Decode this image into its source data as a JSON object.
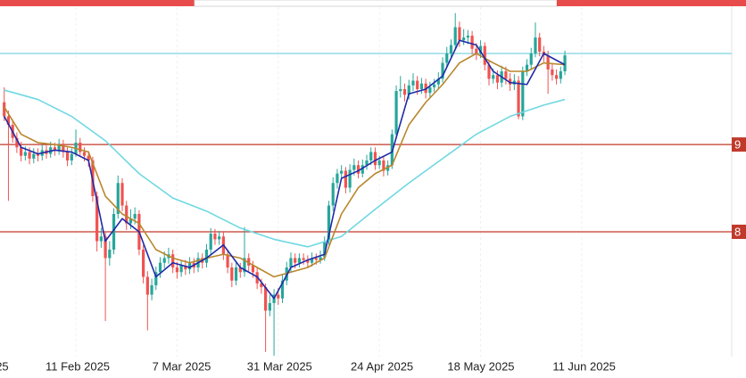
{
  "chart_data": {
    "type": "candlestick",
    "up_color": "#26a69a",
    "down_color": "#ef5350",
    "xlim": [
      "2025-01-24",
      "2025-07-17"
    ],
    "ylim": [
      75.7,
      113.7
    ],
    "xticks": [
      {
        "value": "2025-01-18",
        "label": "25"
      },
      {
        "value": "2025-02-11",
        "label": "11 Feb 2025"
      },
      {
        "value": "2025-03-07",
        "label": "7 Mar 2025"
      },
      {
        "value": "2025-03-31",
        "label": "31 Mar 2025"
      },
      {
        "value": "2025-04-24",
        "label": "24 Apr 2025"
      },
      {
        "value": "2025-05-18",
        "label": "18 May 2025"
      },
      {
        "value": "2025-06-11",
        "label": "11 Jun 2025"
      }
    ],
    "levels": [
      {
        "value": 108.0,
        "color": "#7fd3df"
      },
      {
        "value": 98.3,
        "color": "#c0392b",
        "label": "9"
      },
      {
        "value": 89.0,
        "color": "#c0392b",
        "label": "8"
      }
    ],
    "x": [
      "2025-01-25",
      "2025-01-26",
      "2025-01-27",
      "2025-01-28",
      "2025-01-29",
      "2025-01-30",
      "2025-01-31",
      "2025-02-01",
      "2025-02-02",
      "2025-02-03",
      "2025-02-04",
      "2025-02-05",
      "2025-02-06",
      "2025-02-07",
      "2025-02-08",
      "2025-02-09",
      "2025-02-10",
      "2025-02-11",
      "2025-02-12",
      "2025-02-13",
      "2025-02-14",
      "2025-02-15",
      "2025-02-16",
      "2025-02-17",
      "2025-02-18",
      "2025-02-19",
      "2025-02-20",
      "2025-02-21",
      "2025-02-22",
      "2025-02-23",
      "2025-02-24",
      "2025-02-25",
      "2025-02-26",
      "2025-02-27",
      "2025-02-28",
      "2025-03-01",
      "2025-03-02",
      "2025-03-03",
      "2025-03-04",
      "2025-03-05",
      "2025-03-06",
      "2025-03-07",
      "2025-03-08",
      "2025-03-09",
      "2025-03-10",
      "2025-03-11",
      "2025-03-12",
      "2025-03-13",
      "2025-03-14",
      "2025-03-15",
      "2025-03-16",
      "2025-03-17",
      "2025-03-18",
      "2025-03-19",
      "2025-03-20",
      "2025-03-21",
      "2025-03-22",
      "2025-03-23",
      "2025-03-24",
      "2025-03-25",
      "2025-03-26",
      "2025-03-27",
      "2025-03-28",
      "2025-03-29",
      "2025-03-30",
      "2025-03-31",
      "2025-04-01",
      "2025-04-02",
      "2025-04-03",
      "2025-04-04",
      "2025-04-05",
      "2025-04-06",
      "2025-04-07",
      "2025-04-08",
      "2025-04-09",
      "2025-04-10",
      "2025-04-11",
      "2025-04-12",
      "2025-04-13",
      "2025-04-14",
      "2025-04-15",
      "2025-04-16",
      "2025-04-17",
      "2025-04-18",
      "2025-04-19",
      "2025-04-20",
      "2025-04-21",
      "2025-04-22",
      "2025-04-23",
      "2025-04-24",
      "2025-04-25",
      "2025-04-26",
      "2025-04-27",
      "2025-04-28",
      "2025-04-29",
      "2025-04-30",
      "2025-05-01",
      "2025-05-02",
      "2025-05-03",
      "2025-05-04",
      "2025-05-05",
      "2025-05-06",
      "2025-05-07",
      "2025-05-08",
      "2025-05-09",
      "2025-05-10",
      "2025-05-11",
      "2025-05-12",
      "2025-05-13",
      "2025-05-14",
      "2025-05-15",
      "2025-05-16",
      "2025-05-17",
      "2025-05-18",
      "2025-05-19",
      "2025-05-20",
      "2025-05-21",
      "2025-05-22",
      "2025-05-23",
      "2025-05-24",
      "2025-05-25",
      "2025-05-26",
      "2025-05-27",
      "2025-05-28",
      "2025-05-29",
      "2025-05-30",
      "2025-05-31",
      "2025-06-01",
      "2025-06-02",
      "2025-06-03",
      "2025-06-04",
      "2025-06-05",
      "2025-06-06",
      "2025-06-07"
    ],
    "values": [
      [
        102.8,
        104.4,
        100.8,
        101.3
      ],
      [
        101.3,
        101.9,
        92.3,
        100.4
      ],
      [
        100.4,
        100.9,
        98.5,
        99.0
      ],
      [
        99.0,
        99.6,
        97.4,
        98.0
      ],
      [
        98.0,
        98.6,
        96.5,
        97.1
      ],
      [
        97.1,
        98.1,
        96.6,
        97.5
      ],
      [
        97.5,
        98.0,
        96.2,
        96.8
      ],
      [
        96.8,
        97.9,
        96.3,
        97.3
      ],
      [
        97.3,
        97.9,
        96.5,
        97.1
      ],
      [
        97.1,
        98.3,
        96.6,
        97.7
      ],
      [
        97.7,
        98.2,
        96.8,
        97.3
      ],
      [
        97.3,
        98.6,
        96.9,
        98.0
      ],
      [
        98.0,
        98.5,
        97.1,
        97.7
      ],
      [
        97.7,
        98.9,
        97.2,
        98.3
      ],
      [
        98.3,
        98.8,
        96.9,
        97.5
      ],
      [
        97.5,
        98.0,
        96.0,
        96.6
      ],
      [
        96.6,
        97.9,
        96.1,
        97.3
      ],
      [
        97.3,
        99.9,
        97.0,
        98.5
      ],
      [
        98.5,
        99.0,
        97.0,
        97.5
      ],
      [
        97.5,
        98.0,
        96.5,
        97.1
      ],
      [
        97.1,
        97.6,
        95.9,
        96.6
      ],
      [
        96.6,
        97.0,
        92.2,
        92.8
      ],
      [
        92.8,
        93.3,
        86.9,
        88.0
      ],
      [
        88.0,
        89.4,
        87.3,
        88.5
      ],
      [
        88.5,
        89.0,
        79.5,
        86.2
      ],
      [
        86.2,
        88.0,
        85.4,
        87.1
      ],
      [
        87.1,
        91.5,
        86.6,
        90.9
      ],
      [
        90.9,
        95.0,
        90.4,
        94.2
      ],
      [
        94.2,
        94.7,
        91.2,
        91.8
      ],
      [
        91.8,
        92.3,
        89.2,
        89.9
      ],
      [
        89.9,
        91.4,
        89.3,
        90.4
      ],
      [
        90.4,
        91.6,
        89.8,
        90.9
      ],
      [
        90.9,
        91.3,
        86.5,
        87.1
      ],
      [
        87.1,
        87.6,
        83.5,
        84.2
      ],
      [
        84.2,
        84.8,
        78.5,
        82.3
      ],
      [
        82.3,
        84.0,
        81.7,
        83.3
      ],
      [
        83.3,
        85.3,
        82.8,
        84.7
      ],
      [
        84.7,
        86.3,
        84.1,
        85.7
      ],
      [
        85.7,
        86.9,
        85.1,
        86.2
      ],
      [
        86.2,
        87.3,
        85.6,
        86.6
      ],
      [
        86.6,
        87.1,
        84.6,
        85.2
      ],
      [
        85.2,
        85.8,
        84.0,
        84.7
      ],
      [
        84.7,
        86.0,
        84.2,
        85.4
      ],
      [
        85.4,
        86.0,
        84.4,
        85.0
      ],
      [
        85.0,
        86.3,
        84.5,
        85.7
      ],
      [
        85.7,
        86.2,
        84.6,
        85.2
      ],
      [
        85.2,
        86.8,
        84.7,
        86.2
      ],
      [
        86.2,
        86.7,
        85.1,
        85.7
      ],
      [
        85.7,
        87.7,
        85.2,
        87.1
      ],
      [
        87.1,
        89.4,
        86.6,
        88.8
      ],
      [
        88.8,
        89.3,
        87.6,
        88.2
      ],
      [
        88.2,
        89.1,
        87.6,
        88.5
      ],
      [
        88.5,
        89.0,
        86.0,
        86.6
      ],
      [
        86.6,
        87.1,
        84.6,
        85.2
      ],
      [
        85.2,
        85.7,
        83.1,
        83.8
      ],
      [
        83.8,
        85.8,
        83.3,
        85.2
      ],
      [
        85.2,
        85.7,
        84.1,
        84.7
      ],
      [
        84.7,
        89.5,
        84.2,
        86.2
      ],
      [
        86.2,
        86.7,
        84.8,
        85.4
      ],
      [
        85.4,
        85.9,
        84.1,
        84.7
      ],
      [
        84.7,
        85.2,
        82.9,
        83.5
      ],
      [
        83.5,
        84.0,
        82.4,
        83.1
      ],
      [
        83.1,
        83.5,
        76.2,
        80.6
      ],
      [
        80.6,
        82.3,
        80.0,
        81.4
      ],
      [
        81.4,
        82.9,
        75.8,
        82.3
      ],
      [
        82.3,
        83.0,
        81.2,
        81.9
      ],
      [
        81.9,
        84.4,
        81.4,
        83.8
      ],
      [
        83.8,
        85.8,
        83.3,
        85.2
      ],
      [
        85.2,
        86.8,
        84.7,
        86.2
      ],
      [
        86.2,
        86.7,
        85.1,
        85.7
      ],
      [
        85.7,
        86.7,
        85.2,
        86.2
      ],
      [
        86.2,
        86.7,
        85.5,
        86.0
      ],
      [
        86.0,
        86.5,
        85.2,
        85.7
      ],
      [
        85.7,
        86.8,
        85.3,
        86.2
      ],
      [
        86.2,
        86.7,
        85.5,
        86.0
      ],
      [
        86.0,
        87.0,
        85.6,
        86.3
      ],
      [
        86.3,
        88.5,
        85.9,
        88.0
      ],
      [
        88.0,
        92.3,
        87.6,
        91.8
      ],
      [
        91.8,
        94.8,
        91.2,
        94.2
      ],
      [
        94.2,
        95.7,
        93.6,
        95.2
      ],
      [
        95.2,
        96.1,
        94.6,
        95.5
      ],
      [
        95.5,
        95.9,
        93.1,
        93.7
      ],
      [
        93.7,
        96.2,
        93.2,
        95.6
      ],
      [
        95.6,
        96.8,
        95.0,
        96.1
      ],
      [
        96.1,
        96.6,
        94.7,
        95.2
      ],
      [
        95.2,
        96.7,
        94.8,
        96.1
      ],
      [
        96.1,
        97.2,
        95.6,
        96.6
      ],
      [
        96.6,
        98.0,
        96.1,
        97.5
      ],
      [
        97.5,
        98.0,
        95.6,
        96.1
      ],
      [
        96.1,
        97.1,
        95.7,
        96.6
      ],
      [
        96.6,
        97.0,
        94.9,
        95.5
      ],
      [
        95.5,
        96.6,
        95.0,
        96.1
      ],
      [
        96.1,
        99.9,
        95.7,
        99.4
      ],
      [
        99.4,
        104.6,
        98.9,
        104.0
      ],
      [
        104.0,
        105.6,
        103.3,
        104.2
      ],
      [
        104.2,
        104.8,
        102.9,
        103.6
      ],
      [
        103.6,
        105.2,
        103.1,
        104.6
      ],
      [
        104.6,
        105.9,
        104.0,
        105.1
      ],
      [
        105.1,
        105.6,
        103.6,
        104.2
      ],
      [
        104.2,
        105.4,
        103.7,
        104.8
      ],
      [
        104.8,
        105.3,
        103.2,
        103.8
      ],
      [
        103.8,
        105.0,
        103.3,
        104.4
      ],
      [
        104.4,
        105.3,
        103.9,
        104.7
      ],
      [
        104.7,
        106.0,
        104.2,
        105.3
      ],
      [
        105.3,
        107.6,
        104.9,
        107.0
      ],
      [
        107.0,
        108.7,
        106.5,
        108.0
      ],
      [
        108.0,
        109.5,
        107.4,
        108.9
      ],
      [
        108.9,
        112.3,
        108.4,
        110.8
      ],
      [
        110.8,
        111.4,
        108.7,
        109.4
      ],
      [
        109.4,
        110.6,
        108.9,
        109.7
      ],
      [
        109.7,
        110.5,
        109.0,
        109.9
      ],
      [
        109.9,
        110.4,
        107.9,
        108.5
      ],
      [
        108.5,
        109.1,
        107.3,
        108.0
      ],
      [
        108.0,
        109.4,
        107.5,
        108.8
      ],
      [
        108.8,
        109.2,
        106.2,
        106.8
      ],
      [
        106.8,
        107.3,
        104.6,
        105.3
      ],
      [
        105.3,
        106.4,
        104.8,
        105.7
      ],
      [
        105.7,
        106.2,
        104.2,
        104.9
      ],
      [
        104.9,
        106.7,
        104.4,
        106.1
      ],
      [
        106.1,
        106.6,
        104.7,
        105.3
      ],
      [
        105.3,
        105.9,
        104.0,
        104.7
      ],
      [
        104.7,
        105.8,
        104.1,
        105.1
      ],
      [
        105.1,
        105.6,
        101.0,
        101.3
      ],
      [
        101.3,
        106.6,
        100.9,
        106.1
      ],
      [
        106.1,
        107.4,
        105.6,
        106.8
      ],
      [
        106.8,
        108.6,
        106.3,
        108.0
      ],
      [
        108.0,
        111.3,
        107.6,
        109.7
      ],
      [
        109.7,
        110.2,
        107.7,
        108.2
      ],
      [
        108.2,
        108.8,
        107.1,
        107.8
      ],
      [
        107.8,
        108.3,
        103.7,
        106.3
      ],
      [
        106.3,
        106.9,
        105.1,
        105.7
      ],
      [
        105.7,
        106.3,
        104.7,
        105.3
      ],
      [
        105.3,
        106.6,
        104.8,
        106.1
      ],
      [
        106.1,
        108.3,
        105.7,
        107.8
      ]
    ],
    "overlays": [
      {
        "color": "#6fd8e2",
        "x": [
          "2025-01-25",
          "2025-02-02",
          "2025-02-10",
          "2025-02-18",
          "2025-02-26",
          "2025-03-06",
          "2025-03-14",
          "2025-03-22",
          "2025-03-30",
          "2025-04-07",
          "2025-04-15",
          "2025-04-23",
          "2025-05-01",
          "2025-05-09",
          "2025-05-17",
          "2025-05-25",
          "2025-06-02",
          "2025-06-07"
        ],
        "values": [
          104.1,
          103.1,
          101.3,
          98.7,
          95.2,
          92.6,
          91.2,
          89.4,
          88.2,
          87.4,
          88.5,
          91.4,
          94.2,
          96.8,
          99.4,
          101.3,
          102.5,
          103.1
        ]
      },
      {
        "color": "#b8862b",
        "x": [
          "2025-01-25",
          "2025-01-29",
          "2025-02-02",
          "2025-02-06",
          "2025-02-10",
          "2025-02-14",
          "2025-02-18",
          "2025-02-22",
          "2025-02-26",
          "2025-03-02",
          "2025-03-06",
          "2025-03-10",
          "2025-03-14",
          "2025-03-18",
          "2025-03-22",
          "2025-03-26",
          "2025-03-30",
          "2025-04-03",
          "2025-04-07",
          "2025-04-11",
          "2025-04-15",
          "2025-04-19",
          "2025-04-23",
          "2025-04-27",
          "2025-05-01",
          "2025-05-05",
          "2025-05-09",
          "2025-05-13",
          "2025-05-17",
          "2025-05-21",
          "2025-05-25",
          "2025-05-29",
          "2025-06-02",
          "2025-06-07"
        ],
        "values": [
          102.3,
          99.4,
          98.5,
          98.3,
          98.0,
          97.5,
          92.8,
          90.9,
          89.9,
          87.1,
          86.2,
          85.7,
          86.2,
          86.6,
          86.2,
          85.2,
          84.2,
          84.7,
          85.2,
          86.2,
          90.9,
          93.7,
          95.2,
          96.1,
          100.4,
          102.8,
          104.7,
          107.0,
          108.0,
          107.0,
          106.1,
          106.1,
          107.0,
          106.8
        ]
      },
      {
        "color": "#1f2aa8",
        "x": [
          "2025-01-25",
          "2025-01-29",
          "2025-02-02",
          "2025-02-06",
          "2025-02-10",
          "2025-02-14",
          "2025-02-18",
          "2025-02-22",
          "2025-02-26",
          "2025-03-02",
          "2025-03-06",
          "2025-03-10",
          "2025-03-14",
          "2025-03-18",
          "2025-03-22",
          "2025-03-26",
          "2025-03-30",
          "2025-04-03",
          "2025-04-07",
          "2025-04-11",
          "2025-04-15",
          "2025-04-19",
          "2025-04-23",
          "2025-04-27",
          "2025-05-01",
          "2025-05-05",
          "2025-05-09",
          "2025-05-13",
          "2025-05-17",
          "2025-05-21",
          "2025-05-25",
          "2025-05-29",
          "2025-06-02",
          "2025-06-07"
        ],
        "values": [
          101.3,
          98.0,
          97.3,
          97.7,
          97.5,
          96.6,
          88.0,
          90.4,
          89.0,
          84.2,
          85.7,
          85.2,
          86.2,
          87.6,
          85.2,
          84.2,
          81.9,
          85.2,
          86.0,
          86.6,
          94.7,
          95.5,
          96.6,
          97.5,
          103.7,
          104.2,
          105.6,
          109.4,
          108.9,
          106.1,
          104.9,
          104.7,
          108.0,
          106.8
        ]
      }
    ]
  }
}
